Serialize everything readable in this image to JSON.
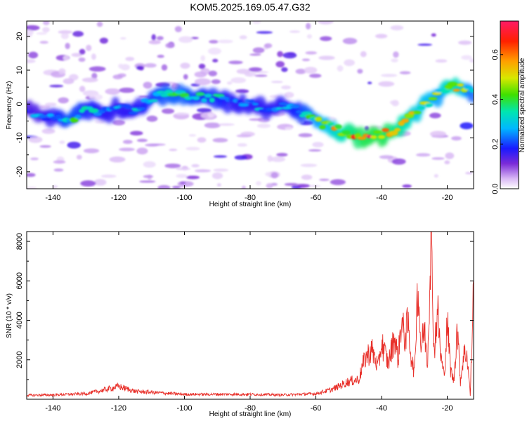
{
  "title": "KOM5.2025.169.05.47.G32",
  "chart_data": [
    {
      "type": "heatmap",
      "xlabel": "Height of straight line (km)",
      "ylabel": "Frequency (Hz)",
      "xlim": [
        -148,
        -12
      ],
      "ylim": [
        -25,
        24.5
      ],
      "x_ticks": [
        -140,
        -120,
        -100,
        -80,
        -60,
        -40,
        -20
      ],
      "y_ticks": [
        -20,
        -10,
        0,
        10,
        20
      ],
      "colorbar": {
        "label": "Normalized spectral amplitude",
        "range": [
          0,
          0.75
        ],
        "ticks": [
          0.0,
          0.2,
          0.4,
          0.6
        ],
        "tick_labels": [
          "0.0",
          "0.2",
          "0.4",
          "0.6"
        ]
      },
      "ridge": {
        "x": [
          -147,
          -140,
          -135,
          -130,
          -125,
          -120,
          -115,
          -110,
          -105,
          -100,
          -95,
          -90,
          -85,
          -80,
          -75,
          -70,
          -65,
          -60,
          -55,
          -50,
          -45,
          -40,
          -35,
          -30,
          -25,
          -22,
          -20,
          -17,
          -14,
          -12
        ],
        "frequency": [
          -2,
          -4,
          -5,
          -2,
          -3,
          -1,
          -2,
          2,
          3,
          3,
          2,
          2,
          0,
          0,
          -1,
          -1,
          -2,
          -5,
          -7,
          -9,
          -10,
          -9,
          -7,
          -3,
          1,
          3,
          5,
          5,
          4,
          3
        ],
        "amplitude": [
          0.25,
          0.3,
          0.4,
          0.35,
          0.3,
          0.3,
          0.3,
          0.35,
          0.4,
          0.4,
          0.35,
          0.35,
          0.3,
          0.3,
          0.3,
          0.3,
          0.35,
          0.45,
          0.55,
          0.65,
          0.7,
          0.7,
          0.65,
          0.55,
          0.5,
          0.45,
          0.6,
          0.6,
          0.45,
          0.4
        ]
      }
    },
    {
      "type": "line",
      "xlabel": "Height of straight line (km)",
      "ylabel": "SNR (10 * v/v)",
      "xlim": [
        -148,
        -12
      ],
      "ylim": [
        0,
        8500
      ],
      "x_ticks": [
        -140,
        -120,
        -100,
        -80,
        -60,
        -40,
        -20
      ],
      "y_ticks": [
        2000,
        4000,
        6000,
        8000
      ],
      "color": "#e8302a",
      "series": [
        {
          "x": [
            -148,
            -140,
            -130,
            -125,
            -120,
            -115,
            -110,
            -100,
            -90,
            -80,
            -70,
            -60,
            -55,
            -50,
            -47,
            -45,
            -43,
            -41,
            -40,
            -38,
            -36,
            -35,
            -34,
            -33,
            -32,
            -31,
            -30,
            -29,
            -28,
            -27,
            -26,
            -25,
            -24,
            -23,
            -22,
            -21,
            -20,
            -19,
            -18,
            -17,
            -16,
            -15,
            -14,
            -13,
            -12
          ],
          "y": [
            200,
            220,
            280,
            450,
            650,
            400,
            350,
            250,
            250,
            250,
            220,
            280,
            500,
            900,
            1000,
            2100,
            2500,
            1600,
            2900,
            1800,
            3200,
            2000,
            4000,
            3100,
            3800,
            2200,
            1300,
            6000,
            2600,
            3600,
            1800,
            8500,
            2300,
            4600,
            2200,
            1200,
            3900,
            1500,
            900,
            3700,
            900,
            2300,
            2300,
            200,
            5800
          ]
        }
      ]
    }
  ]
}
